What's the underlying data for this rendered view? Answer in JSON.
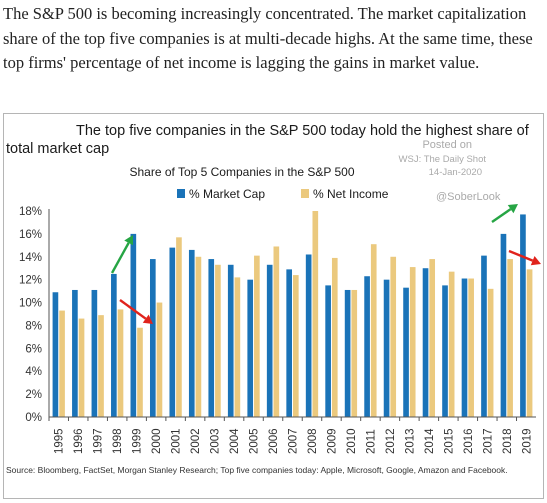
{
  "intro_text": "The S&P 500 is becoming increasingly concentrated. The market capitalization share of the top five companies is at multi-decade highs. At the same time, these top firms' percentage of net income is lagging the gains in market value.",
  "header_line1": "The top five companies in the S&P 500 today hold the highest share of",
  "header_line2": "total market cap",
  "posted_label": "Posted on",
  "posted_source": "WSJ: The Daily Shot",
  "posted_date": "14-Jan-2020",
  "handle": "@SoberLook",
  "source_text": "Source: Bloomberg, FactSet, Morgan Stanley Research; Top five companies today: Apple, Microsoft, Google, Amazon and Facebook.",
  "colors": {
    "market_cap": "#1a73b8",
    "net_income": "#ebc97e",
    "arrow_up": "#26a544",
    "arrow_down": "#e0231c"
  },
  "chart_data": {
    "type": "bar",
    "title": "Share of Top 5 Companies in the S&P 500",
    "categories": [
      "1995",
      "1996",
      "1997",
      "1998",
      "1999",
      "2000",
      "2001",
      "2002",
      "2003",
      "2004",
      "2005",
      "2006",
      "2007",
      "2008",
      "2009",
      "2010",
      "2011",
      "2012",
      "2013",
      "2014",
      "2015",
      "2016",
      "2017",
      "2018",
      "2019"
    ],
    "series": [
      {
        "name": "% Market Cap",
        "values": [
          10.9,
          11.1,
          11.1,
          12.5,
          16.0,
          13.8,
          14.8,
          14.6,
          13.8,
          13.3,
          12.0,
          13.3,
          12.9,
          14.2,
          11.5,
          11.1,
          12.3,
          12.0,
          11.3,
          13.0,
          11.5,
          12.1,
          14.1,
          16.0,
          17.7
        ]
      },
      {
        "name": "% Net Income",
        "values": [
          9.3,
          8.6,
          8.9,
          9.4,
          7.8,
          10.0,
          15.7,
          14.0,
          13.3,
          12.2,
          14.1,
          14.9,
          12.4,
          18.0,
          13.9,
          11.1,
          15.1,
          14.0,
          13.1,
          13.8,
          12.7,
          12.1,
          11.2,
          13.8,
          12.9
        ]
      }
    ],
    "ylim": [
      0,
      18
    ],
    "yticks": [
      "0%",
      "2%",
      "4%",
      "6%",
      "8%",
      "10%",
      "12%",
      "14%",
      "16%",
      "18%"
    ],
    "grid": false,
    "legend": "top-center"
  }
}
